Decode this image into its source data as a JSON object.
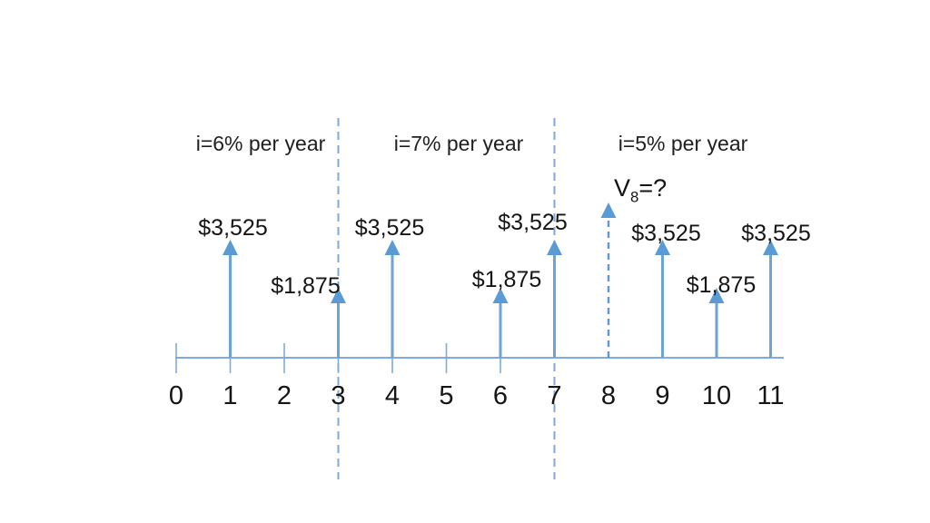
{
  "meta": {
    "background_color": "#ffffff",
    "description": "Cash flow timeline diagram with varying interest rates"
  },
  "chart_data": {
    "type": "cashflow-timeline",
    "title": "",
    "x_axis": {
      "unit": "year",
      "tick_labels": [
        "0",
        "1",
        "2",
        "3",
        "4",
        "5",
        "6",
        "7",
        "8",
        "9",
        "10",
        "11"
      ]
    },
    "periods": [
      {
        "label": "i=6% per year",
        "from_year": 0,
        "to_year": 3
      },
      {
        "label": "i=7% per year",
        "from_year": 3,
        "to_year": 7
      },
      {
        "label": "i=5% per year",
        "from_year": 7,
        "to_year": 11
      }
    ],
    "separators_at_years": [
      3,
      7
    ],
    "cash_flows": [
      {
        "year": 1,
        "label": "$3,525",
        "value": 3525,
        "size": "tall",
        "style": "solid"
      },
      {
        "year": 3,
        "label": "$1,875",
        "value": 1875,
        "size": "short",
        "style": "solid"
      },
      {
        "year": 4,
        "label": "$3,525",
        "value": 3525,
        "size": "tall",
        "style": "solid"
      },
      {
        "year": 6,
        "label": "$1,875",
        "value": 1875,
        "size": "short",
        "style": "solid"
      },
      {
        "year": 7,
        "label": "$3,525",
        "value": 3525,
        "size": "tall",
        "style": "solid"
      },
      {
        "year": 8,
        "label": "V8=?",
        "value": null,
        "size": "dashed",
        "style": "dashed",
        "unknown": true
      },
      {
        "year": 9,
        "label": "$3,525",
        "value": 3525,
        "size": "tall",
        "style": "solid"
      },
      {
        "year": 10,
        "label": "$1,875",
        "value": 1875,
        "size": "short",
        "style": "solid"
      },
      {
        "year": 11,
        "label": "$3,525",
        "value": 3525,
        "size": "tall",
        "style": "solid"
      }
    ],
    "unknown_value_label": {
      "base": "V",
      "sub": "8",
      "suffix": "=?"
    },
    "colors": {
      "arrow": "#5B9BD5",
      "arrow_stem": "#6FA2D6",
      "axis": "#7FACD9",
      "separator": "#7FA9D9",
      "text": "#151515"
    }
  }
}
